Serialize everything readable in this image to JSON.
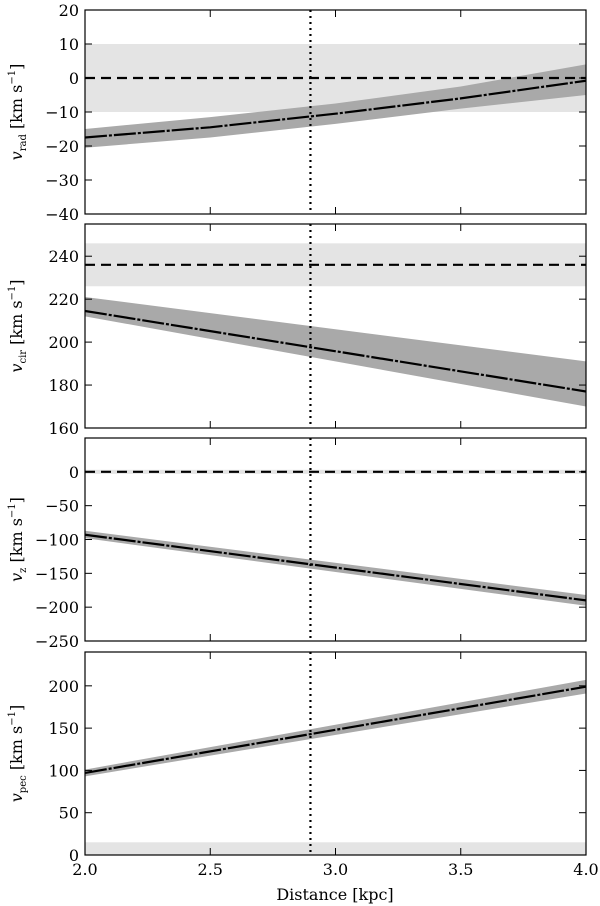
{
  "chart_data": {
    "type": "line",
    "x_label": "Distance [kpc]",
    "x_range": [
      2.0,
      4.0
    ],
    "x_ticks": [
      2.0,
      2.5,
      3.0,
      3.5,
      4.0
    ],
    "x_tick_labels": [
      "2.0",
      "2.5",
      "3.0",
      "3.5",
      "4.0"
    ],
    "vertical_line": {
      "x": 2.9,
      "style": "dotted"
    },
    "colors": {
      "shaded_band": "#e4e4e4",
      "uncertainty_band": "#a9a9a9",
      "line": "#000000"
    },
    "panels": [
      {
        "ylabel_main": "v",
        "ylabel_sub": "rad",
        "ylabel_rest": " [km s",
        "ylabel_sup": "−1",
        "ylabel_end": "]",
        "ylim": [
          -40,
          20
        ],
        "y_ticks": [
          -40,
          -30,
          -20,
          -10,
          0,
          10,
          20
        ],
        "y_tick_labels": [
          "−40",
          "−30",
          "−20",
          "−10",
          "0",
          "10",
          "20"
        ],
        "reference": {
          "y": 0,
          "band": [
            -10,
            10
          ]
        },
        "curve": {
          "x": [
            2.0,
            2.5,
            3.0,
            3.5,
            4.0
          ],
          "y": [
            -17.5,
            -14.5,
            -10.5,
            -6.0,
            -0.8
          ]
        },
        "uncertainty": {
          "x": [
            2.0,
            2.5,
            3.0,
            3.5,
            4.0
          ],
          "lower": [
            -20.5,
            -17.5,
            -13.5,
            -9.0,
            -5.0
          ],
          "upper": [
            -15.0,
            -11.5,
            -7.5,
            -2.5,
            4.0
          ]
        }
      },
      {
        "ylabel_main": "v",
        "ylabel_sub": "cir",
        "ylabel_rest": " [km s",
        "ylabel_sup": "−1",
        "ylabel_end": "]",
        "ylim": [
          160,
          255
        ],
        "y_ticks": [
          160,
          180,
          200,
          220,
          240
        ],
        "y_tick_labels": [
          "160",
          "180",
          "200",
          "220",
          "240"
        ],
        "reference": {
          "y": 236,
          "band": [
            226,
            246
          ]
        },
        "curve": {
          "x": [
            2.0,
            4.0
          ],
          "y": [
            214.5,
            177
          ]
        },
        "uncertainty": {
          "x": [
            2.0,
            4.0
          ],
          "lower": [
            212,
            170
          ],
          "upper": [
            221,
            191
          ]
        }
      },
      {
        "ylabel_main": "v",
        "ylabel_sub": "z",
        "ylabel_rest": " [km s",
        "ylabel_sup": "−1",
        "ylabel_end": "]",
        "ylim": [
          -250,
          50
        ],
        "y_ticks": [
          -250,
          -200,
          -150,
          -100,
          -50,
          0
        ],
        "y_tick_labels": [
          "−250",
          "−200",
          "−150",
          "−100",
          "−50",
          "0"
        ],
        "reference": {
          "y": 0,
          "band": [
            -3,
            3
          ]
        },
        "curve": {
          "x": [
            2.0,
            4.0
          ],
          "y": [
            -93,
            -190
          ]
        },
        "uncertainty": {
          "x": [
            2.0,
            4.0
          ],
          "lower": [
            -98,
            -198
          ],
          "upper": [
            -87,
            -182
          ]
        }
      },
      {
        "ylabel_main": "v",
        "ylabel_sub": "pec",
        "ylabel_rest": " [km s",
        "ylabel_sup": "−1",
        "ylabel_end": "]",
        "ylim": [
          0,
          240
        ],
        "y_ticks": [
          0,
          50,
          100,
          150,
          200
        ],
        "y_tick_labels": [
          "0",
          "50",
          "100",
          "150",
          "200"
        ],
        "reference": {
          "y": null,
          "band": [
            0,
            15
          ]
        },
        "curve": {
          "x": [
            2.0,
            4.0
          ],
          "y": [
            97,
            199
          ]
        },
        "uncertainty": {
          "x": [
            2.0,
            4.0
          ],
          "lower": [
            93,
            191
          ],
          "upper": [
            101,
            207
          ]
        }
      }
    ]
  }
}
